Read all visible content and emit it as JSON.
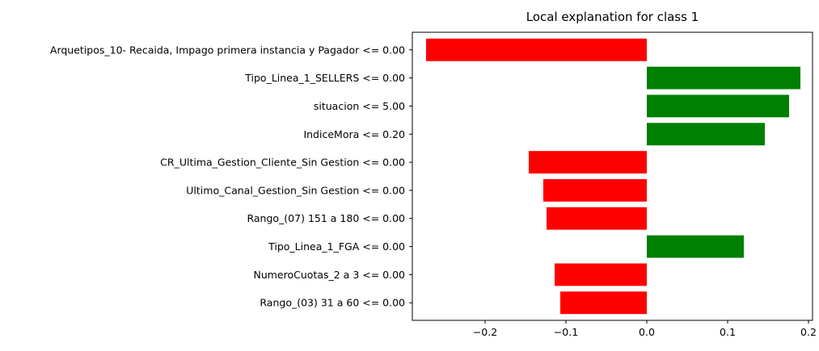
{
  "chart_data": {
    "type": "bar",
    "orientation": "horizontal",
    "title": "Local explanation for class 1",
    "xlabel": "",
    "ylabel": "",
    "xlim": [
      -0.29,
      0.205
    ],
    "xticks": [
      -0.2,
      -0.1,
      0.0,
      0.1,
      0.2
    ],
    "xtick_labels": [
      "−0.2",
      "−0.1",
      "0.0",
      "0.1",
      "0.2"
    ],
    "grid": false,
    "legend": "none",
    "colors": {
      "positive": "#008000",
      "negative": "#ff0000"
    },
    "categories": [
      "Arquetipos_10- Recaida, Impago primera instancia y Pagador <= 0.00",
      "Tipo_Linea_1_SELLERS <= 0.00",
      "situacion <= 5.00",
      "IndiceMora <= 0.20",
      "CR_Ultima_Gestion_Cliente_Sin Gestion <= 0.00",
      "Ultimo_Canal_Gestion_Sin Gestion <= 0.00",
      "Rango_(07) 151 a 180 <= 0.00",
      "Tipo_Linea_1_FGA <= 0.00",
      "NumeroCuotas_2 a 3 <= 0.00",
      "Rango_(03) 31 a 60 <= 0.00"
    ],
    "values": [
      -0.273,
      0.19,
      0.176,
      0.146,
      -0.146,
      -0.128,
      -0.124,
      0.12,
      -0.114,
      -0.107
    ]
  }
}
